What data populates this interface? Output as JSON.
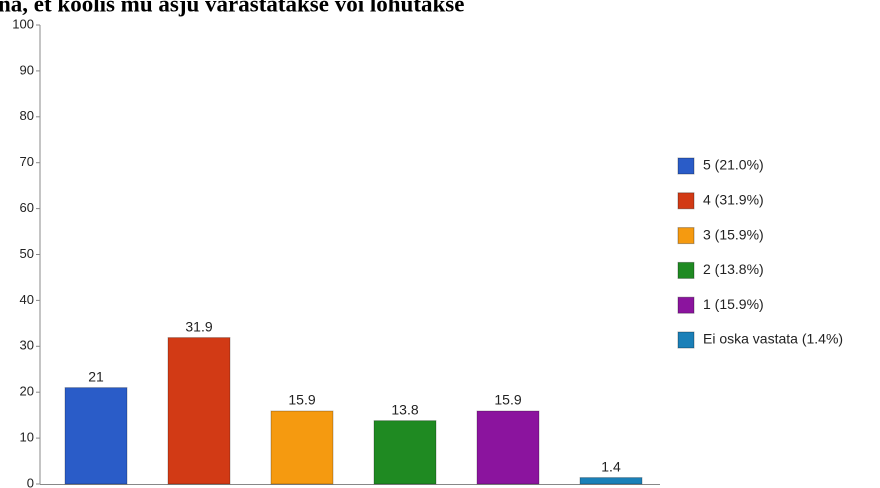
{
  "chart_data": {
    "type": "bar",
    "title": "na, et koolis mu asju varastatakse või lõhutakse",
    "categories": [
      "5  (21.0%)",
      "4  (31.9%)",
      "3  (15.9%)",
      "2  (13.8%)",
      "1  (15.9%)",
      "Ei oska vastata (1.4%)"
    ],
    "values": [
      21,
      31.9,
      15.9,
      13.8,
      15.9,
      1.4
    ],
    "colors": [
      "#2a5cc8",
      "#d23a15",
      "#f59a10",
      "#1f8a22",
      "#8b149e",
      "#1b80b8"
    ],
    "ylim": [
      0,
      100
    ],
    "yticks": [
      0,
      10,
      20,
      30,
      40,
      50,
      60,
      70,
      80,
      90,
      100
    ],
    "legend": "right"
  }
}
